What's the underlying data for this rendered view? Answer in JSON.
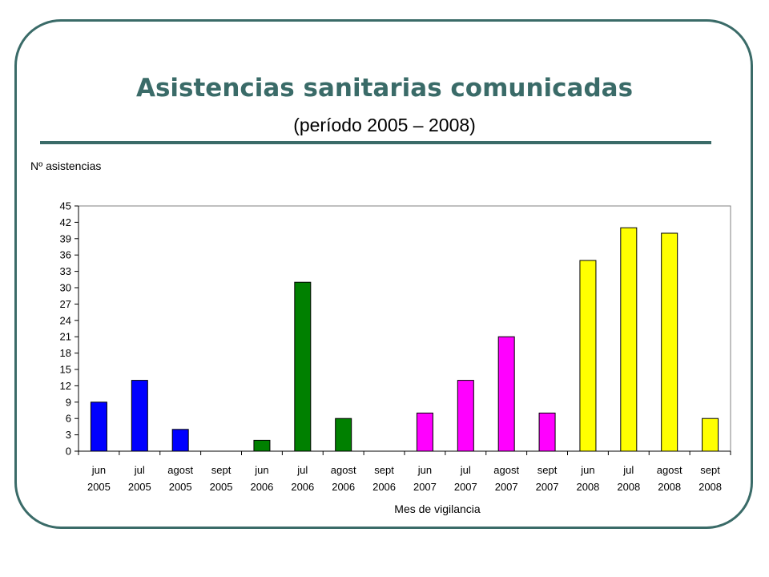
{
  "slide": {
    "title": "Asistencias sanitarias comunicadas",
    "subtitle": "(período 2005 – 2008)"
  },
  "chart_data": {
    "type": "bar",
    "ylabel": "Nº asistencias",
    "xlabel": "Mes de vigilancia",
    "ylim": [
      0,
      45
    ],
    "yticks": [
      0,
      3,
      6,
      9,
      12,
      15,
      18,
      21,
      24,
      27,
      30,
      33,
      36,
      39,
      42,
      45
    ],
    "categories": [
      [
        "jun",
        "2005"
      ],
      [
        "jul",
        "2005"
      ],
      [
        "agost",
        "2005"
      ],
      [
        "sept",
        "2005"
      ],
      [
        "jun",
        "2006"
      ],
      [
        "jul",
        "2006"
      ],
      [
        "agost",
        "2006"
      ],
      [
        "sept",
        "2006"
      ],
      [
        "jun",
        "2007"
      ],
      [
        "jul",
        "2007"
      ],
      [
        "agost",
        "2007"
      ],
      [
        "sept",
        "2007"
      ],
      [
        "jun",
        "2008"
      ],
      [
        "jul",
        "2008"
      ],
      [
        "agost",
        "2008"
      ],
      [
        "sept",
        "2008"
      ]
    ],
    "values": [
      9,
      13,
      4,
      0,
      2,
      31,
      6,
      0,
      7,
      13,
      21,
      7,
      35,
      41,
      40,
      6
    ],
    "colors": [
      "#0000ff",
      "#0000ff",
      "#0000ff",
      "#0000ff",
      "#008000",
      "#008000",
      "#008000",
      "#008000",
      "#ff00ff",
      "#ff00ff",
      "#ff00ff",
      "#ff00ff",
      "#ffff00",
      "#ffff00",
      "#ffff00",
      "#ffff00"
    ],
    "grid": false,
    "legend": "none"
  }
}
